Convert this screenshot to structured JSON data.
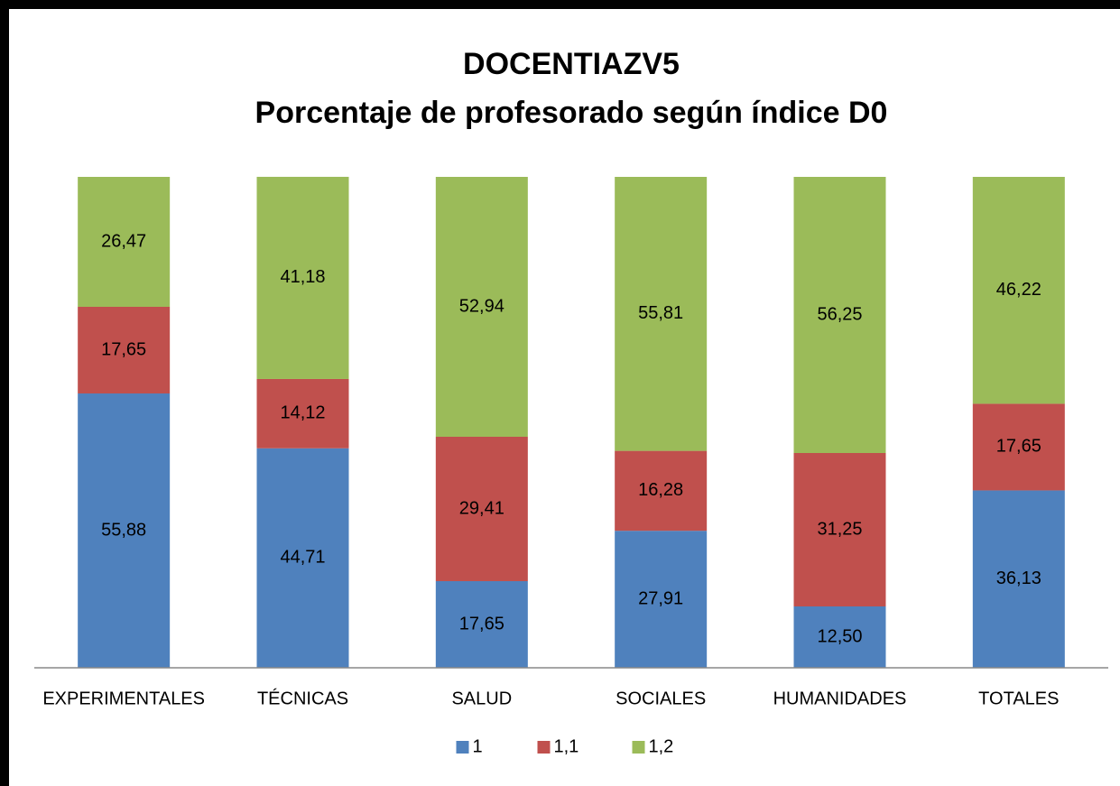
{
  "chart_data": {
    "type": "stacked_bar",
    "title": [
      "DOCENTIAZV5",
      "Porcentaje de profesorado según índice D0"
    ],
    "categories": [
      "EXPERIMENTALES",
      "TÉCNICAS",
      "SALUD",
      "SOCIALES",
      "HUMANIDADES",
      "TOTALES"
    ],
    "ylim": [
      0,
      100
    ],
    "legend": "bottom",
    "series": [
      {
        "name": "1",
        "color": "#4f81bd",
        "values": [
          55.88,
          44.71,
          17.65,
          27.91,
          12.5,
          36.13
        ],
        "value_labels": [
          "55,88",
          "44,71",
          "17,65",
          "27,91",
          "12,50",
          "36,13"
        ]
      },
      {
        "name": "1,1",
        "color": "#c0504d",
        "values": [
          17.65,
          14.12,
          29.41,
          16.28,
          31.25,
          17.65
        ],
        "value_labels": [
          "17,65",
          "14,12",
          "29,41",
          "16,28",
          "31,25",
          "17,65"
        ]
      },
      {
        "name": "1,2",
        "color": "#9bbb59",
        "values": [
          26.47,
          41.18,
          52.94,
          55.81,
          56.25,
          46.22
        ],
        "value_labels": [
          "26,47",
          "41,18",
          "52,94",
          "55,81",
          "56,25",
          "46,22"
        ]
      }
    ]
  }
}
